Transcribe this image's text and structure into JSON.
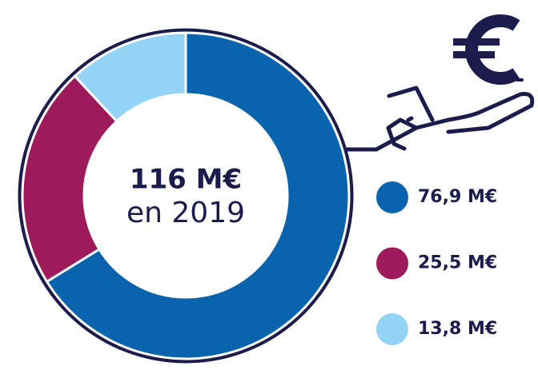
{
  "chart_data": {
    "type": "donut",
    "center_title": "116 M€",
    "center_subtitle": "en 2019",
    "values": [
      76.9,
      25.5,
      13.8
    ],
    "value_labels": [
      "76,9 M€",
      "25,5 M€",
      "13,8 M€"
    ],
    "colors": [
      "#0a64ad",
      "#9e1a5a",
      "#93d3f5"
    ]
  }
}
